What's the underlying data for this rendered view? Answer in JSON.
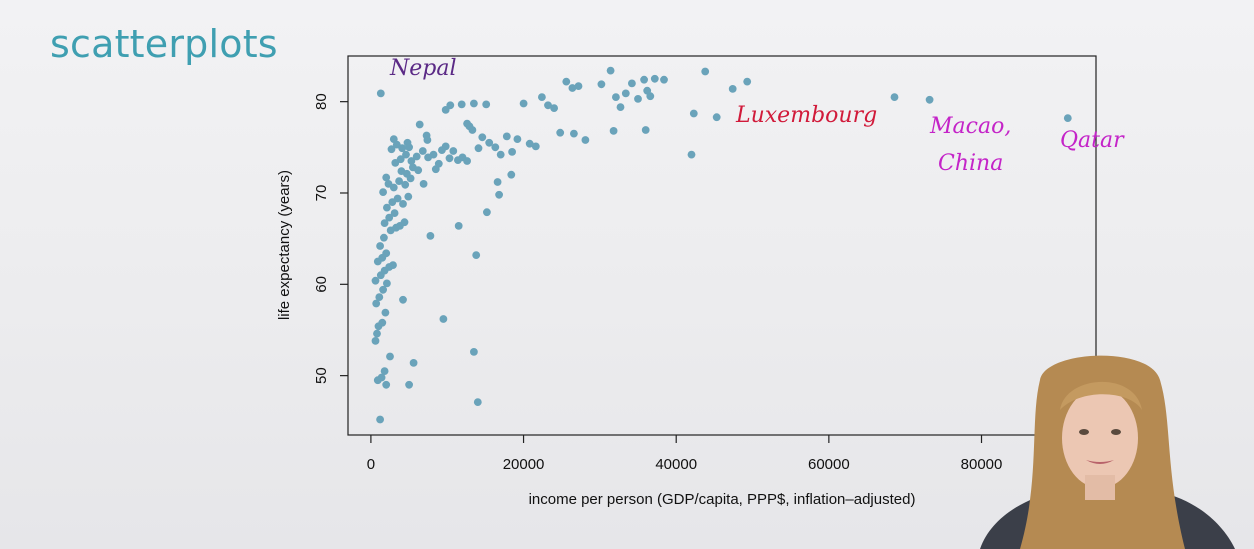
{
  "slide": {
    "title": "scatterplots"
  },
  "chart_data": {
    "type": "scatter",
    "title": "",
    "xlabel": "income per person (GDP/capita, PPP$, inflation–adjusted)",
    "ylabel": "life expectancy (years)",
    "xlim": [
      -3000,
      95000
    ],
    "ylim": [
      43.5,
      85
    ],
    "xticks": [
      0,
      20000,
      40000,
      60000,
      80000
    ],
    "xtick_labels": [
      "0",
      "20000",
      "40000",
      "60000",
      "80000"
    ],
    "yticks": [
      50,
      60,
      70,
      80
    ],
    "ytick_labels": [
      "50",
      "60",
      "70",
      "80"
    ],
    "grid": false,
    "point_color": "#6aa3ba",
    "series": [
      {
        "points": [
          [
            1300,
            80.9
          ],
          [
            1200,
            45.2
          ],
          [
            900,
            49.5
          ],
          [
            1400,
            49.8
          ],
          [
            1800,
            50.5
          ],
          [
            2000,
            49.0
          ],
          [
            2500,
            52.1
          ],
          [
            5000,
            49.0
          ],
          [
            5600,
            51.4
          ],
          [
            4200,
            58.3
          ],
          [
            13500,
            52.6
          ],
          [
            14000,
            47.1
          ],
          [
            9500,
            56.2
          ],
          [
            7800,
            65.3
          ],
          [
            11500,
            66.4
          ],
          [
            13800,
            63.2
          ],
          [
            15200,
            67.9
          ],
          [
            16800,
            69.8
          ],
          [
            600,
            53.8
          ],
          [
            800,
            54.6
          ],
          [
            1000,
            55.4
          ],
          [
            1500,
            55.8
          ],
          [
            1900,
            56.9
          ],
          [
            700,
            57.9
          ],
          [
            1100,
            58.6
          ],
          [
            1600,
            59.4
          ],
          [
            2100,
            60.1
          ],
          [
            600,
            60.4
          ],
          [
            1300,
            61.0
          ],
          [
            1800,
            61.5
          ],
          [
            2400,
            61.9
          ],
          [
            2900,
            62.1
          ],
          [
            900,
            62.5
          ],
          [
            1500,
            62.9
          ],
          [
            2000,
            63.4
          ],
          [
            1200,
            64.2
          ],
          [
            1700,
            65.1
          ],
          [
            2600,
            65.9
          ],
          [
            3300,
            66.2
          ],
          [
            1800,
            66.7
          ],
          [
            2400,
            67.3
          ],
          [
            3100,
            67.8
          ],
          [
            3800,
            66.4
          ],
          [
            4400,
            66.8
          ],
          [
            2100,
            68.4
          ],
          [
            2800,
            69.0
          ],
          [
            3500,
            69.4
          ],
          [
            4200,
            68.8
          ],
          [
            4900,
            69.6
          ],
          [
            1600,
            70.1
          ],
          [
            2300,
            71.0
          ],
          [
            3000,
            70.6
          ],
          [
            3700,
            71.3
          ],
          [
            4500,
            70.9
          ],
          [
            5200,
            71.6
          ],
          [
            2000,
            71.7
          ],
          [
            4000,
            72.4
          ],
          [
            4700,
            72.1
          ],
          [
            5500,
            72.8
          ],
          [
            6200,
            72.5
          ],
          [
            6900,
            71.0
          ],
          [
            3200,
            73.3
          ],
          [
            3900,
            73.7
          ],
          [
            4600,
            74.2
          ],
          [
            5300,
            73.5
          ],
          [
            6000,
            74.0
          ],
          [
            6800,
            74.6
          ],
          [
            7500,
            73.9
          ],
          [
            8200,
            74.2
          ],
          [
            2700,
            74.8
          ],
          [
            3400,
            75.3
          ],
          [
            4100,
            74.9
          ],
          [
            4800,
            75.5
          ],
          [
            7300,
            76.3
          ],
          [
            6400,
            77.5
          ],
          [
            8500,
            72.6
          ],
          [
            8900,
            73.2
          ],
          [
            9300,
            74.7
          ],
          [
            9800,
            75.1
          ],
          [
            10300,
            73.8
          ],
          [
            10800,
            74.6
          ],
          [
            11400,
            73.6
          ],
          [
            12000,
            73.9
          ],
          [
            12600,
            73.5
          ],
          [
            12900,
            77.3
          ],
          [
            13300,
            76.9
          ],
          [
            14100,
            74.9
          ],
          [
            14600,
            76.1
          ],
          [
            10400,
            79.6
          ],
          [
            11900,
            79.7
          ],
          [
            13500,
            79.8
          ],
          [
            15100,
            79.7
          ],
          [
            9800,
            79.1
          ],
          [
            12600,
            77.6
          ],
          [
            15500,
            75.5
          ],
          [
            16300,
            75.0
          ],
          [
            17000,
            74.2
          ],
          [
            17800,
            76.2
          ],
          [
            18500,
            74.5
          ],
          [
            19200,
            75.9
          ],
          [
            20000,
            79.8
          ],
          [
            20800,
            75.4
          ],
          [
            21600,
            75.1
          ],
          [
            22400,
            80.5
          ],
          [
            23200,
            79.6
          ],
          [
            24000,
            79.3
          ],
          [
            24800,
            76.6
          ],
          [
            25600,
            82.2
          ],
          [
            26400,
            81.5
          ],
          [
            27200,
            81.7
          ],
          [
            28100,
            75.8
          ],
          [
            30200,
            81.9
          ],
          [
            31400,
            83.4
          ],
          [
            32100,
            80.5
          ],
          [
            32700,
            79.4
          ],
          [
            33400,
            80.9
          ],
          [
            34200,
            82.0
          ],
          [
            35000,
            80.3
          ],
          [
            35800,
            82.4
          ],
          [
            36200,
            81.2
          ],
          [
            36600,
            80.6
          ],
          [
            37200,
            82.5
          ],
          [
            38400,
            82.4
          ],
          [
            31800,
            76.8
          ],
          [
            36000,
            76.9
          ],
          [
            42000,
            74.2
          ],
          [
            42300,
            78.7
          ],
          [
            43800,
            83.3
          ],
          [
            45300,
            78.3
          ],
          [
            47400,
            81.4
          ],
          [
            49300,
            82.2
          ],
          [
            68600,
            80.5
          ],
          [
            73200,
            80.2
          ],
          [
            91300,
            78.2
          ],
          [
            26600,
            76.5
          ],
          [
            18400,
            72.0
          ],
          [
            16600,
            71.2
          ],
          [
            7400,
            75.8
          ],
          [
            3000,
            75.9
          ],
          [
            5000,
            75.0
          ]
        ]
      }
    ],
    "annotations": [
      {
        "label": "Nepal",
        "color": "#5b2a86"
      },
      {
        "label": "Luxembourg",
        "color": "#d11a3a"
      },
      {
        "label": "Macao,",
        "color": "#c424c8"
      },
      {
        "label": "China",
        "color": "#c424c8"
      },
      {
        "label": "Qatar",
        "color": "#c424c8"
      }
    ]
  }
}
